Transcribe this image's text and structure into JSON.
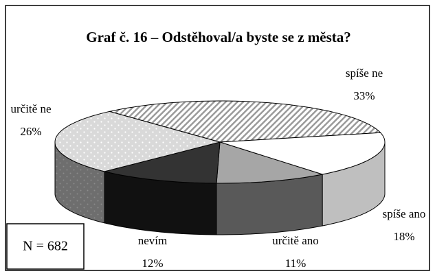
{
  "chart_data": {
    "type": "pie3d",
    "title": "Graf č. 16 – Odstěhoval/a byste se z města?",
    "annotation": "N = 682",
    "categories": [
      "spíše ne",
      "spíše ano",
      "určitě ano",
      "nevím",
      "určitě ne"
    ],
    "values": [
      33,
      18,
      11,
      12,
      26
    ],
    "value_labels": [
      "33%",
      "18%",
      "11%",
      "12%",
      "26%"
    ],
    "colors": [
      "#ffffff",
      "#ffffff",
      "#a6a6a6",
      "#333333",
      "#d9d9d9"
    ],
    "side_colors": [
      "#bfbfbf",
      "#bfbfbf",
      "#595959",
      "#111111",
      "#6e6e6e"
    ]
  }
}
